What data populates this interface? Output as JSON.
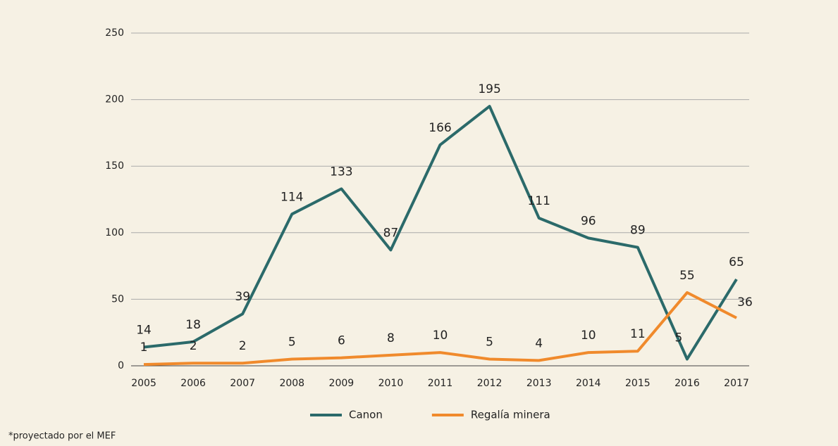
{
  "chart_data": {
    "type": "line",
    "categories": [
      "2005",
      "2006",
      "2007",
      "2008",
      "2009",
      "2010",
      "2011",
      "2012",
      "2013",
      "2014",
      "2015",
      "2016",
      "2017"
    ],
    "series": [
      {
        "name": "Canon",
        "color": "#2b6a6a",
        "values": [
          14,
          18,
          39,
          114,
          133,
          87,
          166,
          195,
          111,
          96,
          89,
          5,
          65
        ]
      },
      {
        "name": "Regalía minera",
        "color": "#f08a2c",
        "values": [
          1,
          2,
          2,
          5,
          6,
          8,
          10,
          5,
          4,
          10,
          11,
          55,
          36
        ]
      }
    ],
    "ylim": [
      0,
      250
    ],
    "yticks": [
      0,
      50,
      100,
      150,
      200,
      250
    ],
    "grid": true,
    "legend": "bottom",
    "note": "*proyectado por el MEF"
  }
}
